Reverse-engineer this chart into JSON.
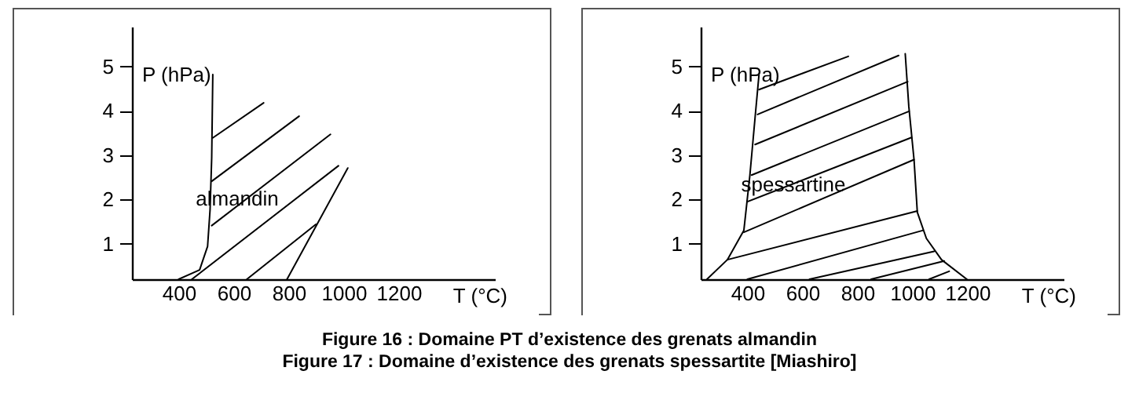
{
  "chart_data": [
    {
      "type": "line",
      "xlabel": "T (°C)",
      "ylabel": "P (hPa)",
      "xlim": [
        230,
        1550
      ],
      "ylim": [
        0.2,
        5.9
      ],
      "xticks": [
        400,
        600,
        800,
        1000,
        1200
      ],
      "yticks": [
        1,
        2,
        3,
        4,
        5
      ],
      "grid": false,
      "marker": "none",
      "line_style": "solid",
      "annotations": [
        "almandin",
        "Figure 16 : Domaine PT d’existence des grenats almandin"
      ],
      "series": [
        {
          "color": "#000000",
          "x": [
            400,
            476,
            505,
            514,
            520,
            524
          ],
          "values": [
            0.2,
            0.41,
            0.94,
            1.76,
            2.94,
            4.82
          ]
        },
        {
          "color": "#000000",
          "x": [
            524,
            709
          ],
          "values": [
            3.39,
            4.18
          ]
        },
        {
          "color": "#000000",
          "x": [
            520,
            838
          ],
          "values": [
            2.41,
            3.88
          ]
        },
        {
          "color": "#000000",
          "x": [
            520,
            952
          ],
          "values": [
            1.41,
            3.47
          ]
        },
        {
          "color": "#000000",
          "x": [
            448,
            981
          ],
          "values": [
            0.2,
            2.76
          ]
        },
        {
          "color": "#000000",
          "x": [
            648,
            899
          ],
          "values": [
            0.2,
            1.44
          ]
        },
        {
          "color": "#000000",
          "x": [
            794,
            1015
          ],
          "values": [
            0.2,
            2.71
          ]
        }
      ]
    },
    {
      "type": "line",
      "xlabel": "T (°C)",
      "ylabel": "P (hPa)",
      "xlim": [
        230,
        1550
      ],
      "ylim": [
        0.2,
        5.9
      ],
      "xticks": [
        400,
        600,
        800,
        1000,
        1200
      ],
      "yticks": [
        1,
        2,
        3,
        4,
        5
      ],
      "grid": false,
      "marker": "none",
      "line_style": "solid",
      "annotations": [
        "spessartine",
        "Figure 17 : Domaine d’existence des grenats spessartite  [Miashiro]"
      ],
      "series": [
        {
          "color": "#000000",
          "x": [
            253,
            327,
            387,
            409,
            428,
            442
          ],
          "values": [
            0.2,
            0.64,
            1.3,
            2.55,
            3.86,
            4.81
          ]
        },
        {
          "color": "#000000",
          "x": [
            974,
            987,
            1006,
            1018,
            1051,
            1106,
            1198
          ],
          "values": [
            5.29,
            4.1,
            2.9,
            1.71,
            1.12,
            0.64,
            0.2
          ]
        },
        {
          "color": "#000000",
          "x": [
            442,
            767
          ],
          "values": [
            4.48,
            5.23
          ]
        },
        {
          "color": "#000000",
          "x": [
            437,
            950
          ],
          "values": [
            3.92,
            5.25
          ]
        },
        {
          "color": "#000000",
          "x": [
            428,
            983
          ],
          "values": [
            3.24,
            4.66
          ]
        },
        {
          "color": "#000000",
          "x": [
            415,
            988
          ],
          "values": [
            2.55,
            3.99
          ]
        },
        {
          "color": "#000000",
          "x": [
            400,
            997
          ],
          "values": [
            1.95,
            3.4
          ]
        },
        {
          "color": "#000000",
          "x": [
            387,
            1006
          ],
          "values": [
            1.26,
            2.9
          ]
        },
        {
          "color": "#000000",
          "x": [
            327,
            1018
          ],
          "values": [
            0.64,
            1.74
          ]
        },
        {
          "color": "#000000",
          "x": [
            400,
            1037
          ],
          "values": [
            0.2,
            1.3
          ]
        },
        {
          "color": "#000000",
          "x": [
            626,
            1079
          ],
          "values": [
            0.2,
            0.83
          ]
        },
        {
          "color": "#000000",
          "x": [
            850,
            1116
          ],
          "values": [
            0.2,
            0.61
          ]
        },
        {
          "color": "#000000",
          "x": [
            1061,
            1134
          ],
          "values": [
            0.2,
            0.38
          ]
        }
      ]
    }
  ]
}
